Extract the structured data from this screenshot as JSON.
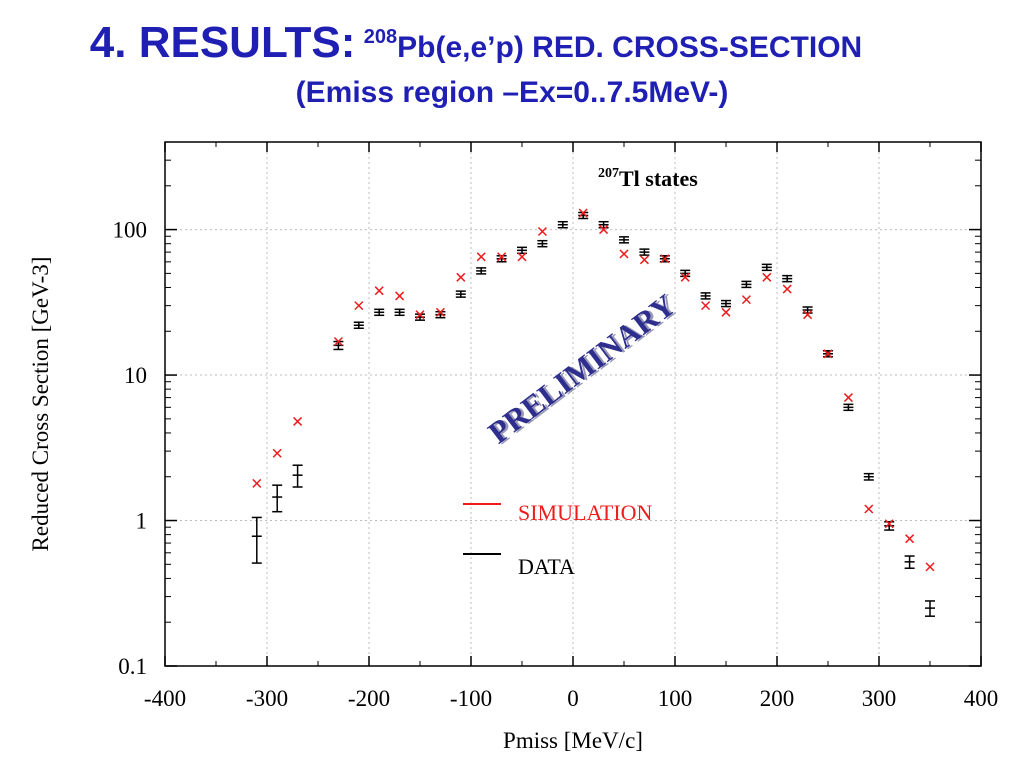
{
  "slide": {
    "heading": "4. RESULTS:",
    "superscript": "208",
    "reaction": "Pb(e,e’p) RED. CROSS-SECTION",
    "subheading": "(Emiss region –Ex=0..7.5MeV-)"
  },
  "chart_data": {
    "type": "scatter",
    "xlabel": "Pmiss [MeV/c]",
    "ylabel": "Reduced Cross Section [GeV-3]",
    "xlim": [
      -400,
      400
    ],
    "ylim": [
      0.1,
      400
    ],
    "yscale": "log",
    "grid": true,
    "x_ticks": [
      -400,
      -300,
      -200,
      -100,
      0,
      100,
      200,
      300,
      400
    ],
    "y_ticks": [
      0.1,
      1,
      10,
      100
    ],
    "x_tick_labels": [
      "-400",
      "-300",
      "-200",
      "-100",
      "0",
      "100",
      "200",
      "300",
      "400"
    ],
    "y_tick_labels": [
      "0.1",
      "1",
      "10",
      "100"
    ],
    "annotation": {
      "superscript": "207",
      "text": "Tl states"
    },
    "watermark": "PRELIMINARY",
    "legend": {
      "placement": "center-bottom",
      "entries": [
        {
          "label": "SIMULATION",
          "color": "#ee1c1c"
        },
        {
          "label": "DATA",
          "color": "#000000"
        }
      ]
    },
    "series": [
      {
        "name": "SIMULATION",
        "color": "#ee1c1c",
        "marker": "x",
        "x": [
          -310,
          -290,
          -270,
          -230,
          -210,
          -190,
          -170,
          -150,
          -130,
          -110,
          -90,
          -70,
          -50,
          -30,
          10,
          30,
          50,
          70,
          90,
          110,
          130,
          150,
          170,
          190,
          210,
          230,
          250,
          270,
          290,
          310,
          330,
          350
        ],
        "y": [
          1.8,
          2.9,
          4.8,
          17,
          30,
          38,
          35,
          26,
          27,
          47,
          65,
          65,
          65,
          97,
          130,
          100,
          68,
          62,
          63,
          47,
          30,
          27,
          33,
          47,
          39,
          26,
          14,
          7,
          1.2,
          0.95,
          0.75,
          0.48
        ]
      },
      {
        "name": "DATA",
        "color": "#000000",
        "marker": "errorbar",
        "x": [
          -310,
          -290,
          -270,
          -230,
          -210,
          -190,
          -170,
          -150,
          -130,
          -110,
          -90,
          -70,
          -50,
          -30,
          -10,
          10,
          30,
          50,
          70,
          90,
          110,
          130,
          150,
          170,
          190,
          210,
          230,
          250,
          270,
          290,
          310,
          330,
          350
        ],
        "y": [
          0.78,
          1.45,
          2.05,
          16,
          22,
          27,
          27,
          25,
          26,
          36,
          52,
          63,
          72,
          80,
          108,
          125,
          108,
          85,
          70,
          63,
          50,
          35,
          31,
          42,
          55,
          46,
          28,
          14,
          6,
          2,
          0.92,
          0.52,
          0.25
        ],
        "err": [
          0.27,
          0.3,
          0.35,
          1,
          1,
          1,
          1,
          1,
          1,
          1.5,
          2,
          2,
          3,
          3,
          3,
          4,
          4,
          3,
          2,
          2,
          2,
          1,
          1,
          1.5,
          2,
          2,
          1,
          0.6,
          0.25,
          0.1,
          0.06,
          0.05,
          0.03
        ]
      }
    ]
  }
}
